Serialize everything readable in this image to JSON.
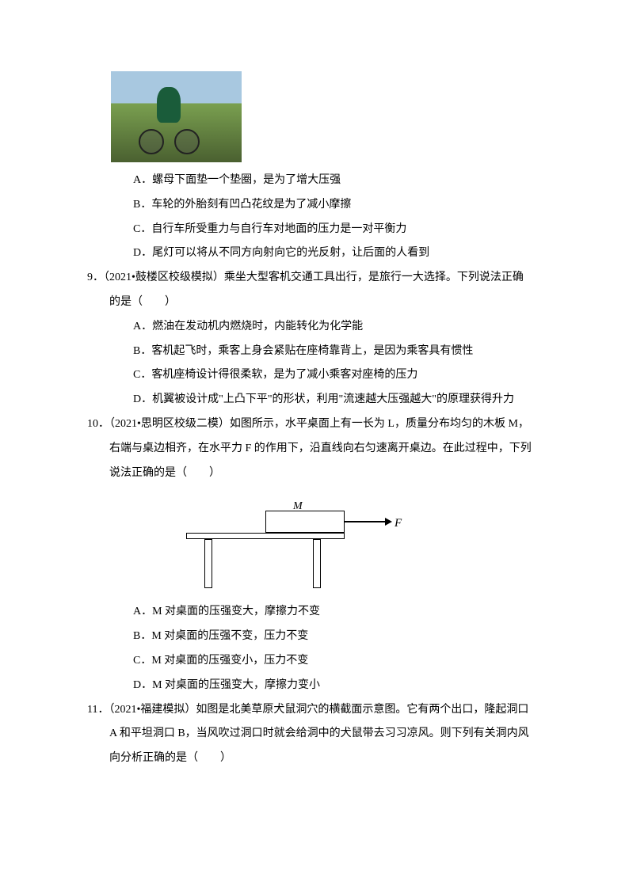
{
  "q8": {
    "options": {
      "a": "A．螺母下面垫一个垫圈，是为了增大压强",
      "b": "B．车轮的外胎刻有凹凸花纹是为了减小摩擦",
      "c": "C．自行车所受重力与自行车对地面的压力是一对平衡力",
      "d": "D．尾灯可以将从不同方向射向它的光反射，让后面的人看到"
    }
  },
  "q9": {
    "stem_line1": "9．（2021•鼓楼区校级模拟）乘坐大型客机交通工具出行，是旅行一大选择。下列说法正确",
    "stem_line2": "的是（　　）",
    "options": {
      "a": "A．燃油在发动机内燃烧时，内能转化为化学能",
      "b": "B．客机起飞时，乘客上身会紧贴在座椅靠背上，是因为乘客具有惯性",
      "c": "C．客机座椅设计得很柔软，是为了减小乘客对座椅的压力",
      "d": "D．机翼被设计成\"上凸下平\"的形状，利用\"流速越大压强越大\"的原理获得升力"
    }
  },
  "q10": {
    "stem_line1": "10．（2021•思明区校级二模）如图所示，水平桌面上有一长为 L，质量分布均匀的木板 M，",
    "stem_line2": "右端与桌边相齐，在水平力 F 的作用下，沿直线向右匀速离开桌边。在此过程中，下列",
    "stem_line3": "说法正确的是（　　）",
    "diagram": {
      "label_m": "M",
      "label_f": "F"
    },
    "options": {
      "a": "A．M 对桌面的压强变大，摩擦力不变",
      "b": "B．M 对桌面的压强不变，压力不变",
      "c": "C．M 对桌面的压强变小，压力不变",
      "d": "D．M 对桌面的压强变大，摩擦力变小"
    }
  },
  "q11": {
    "stem_line1": "11．（2021•福建模拟）如图是北美草原犬鼠洞穴的横截面示意图。它有两个出口，隆起洞口",
    "stem_line2": "A 和平坦洞口 B，当风吹过洞口时就会给洞中的犬鼠带去习习凉风。则下列有关洞内风",
    "stem_line3": "向分析正确的是（　　）"
  }
}
